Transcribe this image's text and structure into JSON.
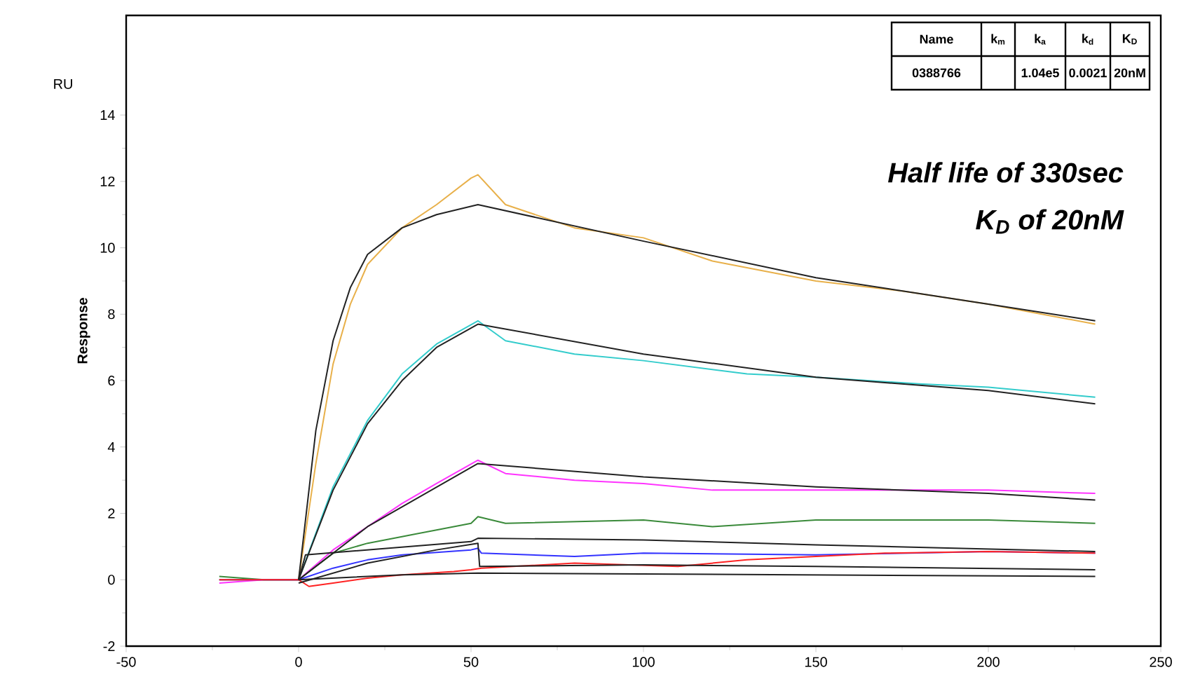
{
  "chart_data": {
    "type": "line",
    "ylabel": "Response",
    "xlim": [
      -50,
      250
    ],
    "ylim": [
      -2,
      17
    ],
    "xticks": [
      -50,
      0,
      50,
      100,
      150,
      200,
      250
    ],
    "yticks": [
      -2,
      0,
      2,
      4,
      6,
      8,
      10,
      12,
      14
    ],
    "grid": false,
    "marker": "none",
    "line_style": "solid",
    "annotations": [
      "Half life of 330sec",
      "K$_{D}$ of 20nM",
      "RU",
      "Name",
      "k$_{m}$",
      "k$_{a}$",
      "k$_{d}$",
      "K$_{D}$",
      "0388766",
      "1.04e5",
      "0.0021",
      "20nM"
    ],
    "series": [
      {
        "color": "#e8b04a",
        "x": [
          -23,
          -10,
          0,
          5,
          10,
          15,
          20,
          30,
          40,
          50,
          52,
          60,
          80,
          100,
          120,
          150,
          175,
          200,
          231
        ],
        "values": [
          0,
          0,
          0,
          3.5,
          6.5,
          8.3,
          9.5,
          10.6,
          11.3,
          12.1,
          12.2,
          11.3,
          10.6,
          10.3,
          9.6,
          9.0,
          8.7,
          8.3,
          7.7
        ]
      },
      {
        "color": "#33cccc",
        "x": [
          -23,
          -10,
          0,
          10,
          20,
          30,
          40,
          52,
          60,
          80,
          100,
          130,
          150,
          180,
          200,
          231
        ],
        "values": [
          0,
          0,
          0,
          2.8,
          4.8,
          6.2,
          7.1,
          7.8,
          7.2,
          6.8,
          6.6,
          6.2,
          6.1,
          5.9,
          5.8,
          5.5
        ]
      },
      {
        "color": "#ff33ff",
        "x": [
          -23,
          -10,
          0,
          10,
          20,
          30,
          40,
          52,
          60,
          80,
          100,
          120,
          150,
          180,
          200,
          231
        ],
        "values": [
          -0.1,
          0,
          0,
          0.9,
          1.6,
          2.3,
          2.9,
          3.6,
          3.2,
          3.0,
          2.9,
          2.7,
          2.7,
          2.7,
          2.7,
          2.6
        ]
      },
      {
        "color": "#3a8a3a",
        "x": [
          -23,
          -10,
          0,
          5,
          10,
          20,
          30,
          40,
          50,
          52,
          60,
          100,
          120,
          150,
          200,
          231
        ],
        "values": [
          0.1,
          0,
          0,
          0.4,
          0.8,
          1.1,
          1.3,
          1.5,
          1.7,
          1.9,
          1.7,
          1.8,
          1.6,
          1.8,
          1.8,
          1.7
        ]
      },
      {
        "color": "#3333ff",
        "x": [
          -23,
          -10,
          0,
          10,
          20,
          30,
          50,
          52,
          53,
          80,
          100,
          150,
          200,
          231
        ],
        "values": [
          0,
          0,
          0,
          0.35,
          0.6,
          0.75,
          0.9,
          0.95,
          0.8,
          0.7,
          0.8,
          0.75,
          0.85,
          0.8
        ]
      },
      {
        "color": "#ff2222",
        "x": [
          -23,
          -10,
          0,
          3,
          10,
          20,
          30,
          45,
          50,
          53,
          80,
          110,
          130,
          170,
          200,
          231
        ],
        "values": [
          0,
          0,
          0,
          -0.2,
          -0.1,
          0.05,
          0.15,
          0.25,
          0.3,
          0.35,
          0.5,
          0.4,
          0.6,
          0.8,
          0.85,
          0.8
        ]
      },
      {
        "color": "#222222",
        "x": [
          0,
          5,
          10,
          15,
          20,
          30,
          40,
          52,
          100,
          150,
          200,
          231
        ],
        "values": [
          0,
          4.5,
          7.2,
          8.8,
          9.8,
          10.6,
          11.0,
          11.3,
          10.2,
          9.1,
          8.3,
          7.8
        ]
      },
      {
        "color": "#222222",
        "x": [
          0,
          10,
          20,
          30,
          40,
          52,
          100,
          150,
          200,
          231
        ],
        "values": [
          0,
          2.7,
          4.7,
          6.0,
          7.0,
          7.7,
          6.8,
          6.1,
          5.7,
          5.3
        ]
      },
      {
        "color": "#222222",
        "x": [
          0,
          20,
          52,
          100,
          150,
          200,
          231
        ],
        "values": [
          0,
          1.6,
          3.5,
          3.1,
          2.8,
          2.6,
          2.4
        ]
      },
      {
        "color": "#222222",
        "x": [
          0,
          2,
          50,
          52,
          100,
          150,
          231
        ],
        "values": [
          0,
          0.75,
          1.15,
          1.25,
          1.2,
          1.05,
          0.85
        ]
      },
      {
        "color": "#222222",
        "x": [
          0,
          20,
          40,
          52,
          52.5,
          100,
          150,
          231
        ],
        "values": [
          -0.1,
          0.5,
          0.9,
          1.1,
          0.4,
          0.45,
          0.4,
          0.3
        ]
      },
      {
        "color": "#222222",
        "x": [
          0,
          30,
          52,
          231
        ],
        "values": [
          0,
          0.15,
          0.2,
          0.1
        ]
      }
    ]
  }
}
